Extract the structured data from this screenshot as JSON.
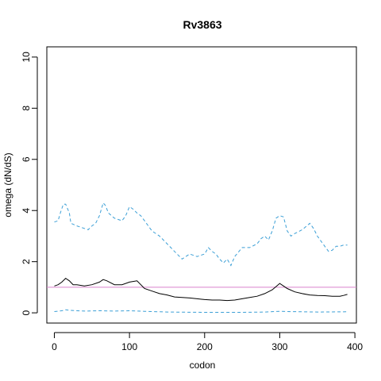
{
  "chart_data": {
    "type": "line",
    "title": "Rv3863",
    "xlabel": "codon",
    "ylabel": "omega (dN/dS)",
    "xlim": [
      -10,
      402
    ],
    "ylim": [
      -0.4,
      10.4
    ],
    "xticks": [
      0,
      100,
      200,
      300,
      400
    ],
    "yticks": [
      0,
      2,
      4,
      6,
      8,
      10
    ],
    "grid": false,
    "colors": {
      "mean": "#000000",
      "upper": "#3b9fd6",
      "lower": "#3b9fd6",
      "reference": "#d980cc"
    },
    "reference_line": {
      "y": 1.0
    },
    "series": [
      {
        "style": "solid",
        "x": [
          0,
          5,
          10,
          15,
          20,
          25,
          30,
          40,
          50,
          60,
          65,
          70,
          80,
          90,
          100,
          110,
          120,
          130,
          140,
          150,
          160,
          170,
          180,
          190,
          200,
          210,
          220,
          230,
          240,
          250,
          260,
          270,
          280,
          290,
          300,
          305,
          310,
          320,
          330,
          340,
          350,
          360,
          370,
          380,
          385,
          390
        ],
        "values": [
          1.05,
          1.1,
          1.2,
          1.35,
          1.25,
          1.1,
          1.1,
          1.05,
          1.1,
          1.2,
          1.3,
          1.25,
          1.1,
          1.1,
          1.2,
          1.25,
          0.95,
          0.85,
          0.75,
          0.7,
          0.62,
          0.6,
          0.58,
          0.55,
          0.52,
          0.5,
          0.5,
          0.48,
          0.5,
          0.55,
          0.6,
          0.65,
          0.75,
          0.9,
          1.15,
          1.05,
          0.95,
          0.82,
          0.75,
          0.7,
          0.68,
          0.67,
          0.65,
          0.65,
          0.68,
          0.72
        ]
      },
      {
        "style": "dashed",
        "x": [
          0,
          5,
          8,
          12,
          15,
          20,
          22,
          30,
          40,
          45,
          50,
          55,
          60,
          65,
          68,
          72,
          80,
          90,
          95,
          100,
          105,
          110,
          115,
          120,
          130,
          140,
          150,
          160,
          170,
          175,
          180,
          190,
          200,
          205,
          210,
          215,
          220,
          225,
          230,
          235,
          240,
          250,
          260,
          270,
          275,
          280,
          285,
          290,
          295,
          300,
          305,
          310,
          315,
          320,
          330,
          340,
          345,
          350,
          355,
          360,
          365,
          370,
          375,
          380,
          385,
          390
        ],
        "values": [
          3.55,
          3.6,
          3.9,
          4.25,
          4.25,
          3.9,
          3.5,
          3.4,
          3.3,
          3.25,
          3.4,
          3.5,
          3.8,
          4.3,
          4.2,
          3.9,
          3.7,
          3.6,
          3.8,
          4.15,
          4.05,
          3.9,
          3.8,
          3.6,
          3.2,
          3.0,
          2.7,
          2.4,
          2.1,
          2.2,
          2.3,
          2.2,
          2.3,
          2.55,
          2.4,
          2.3,
          2.1,
          1.95,
          2.1,
          1.85,
          2.2,
          2.55,
          2.55,
          2.7,
          2.9,
          3.0,
          2.85,
          3.2,
          3.7,
          3.8,
          3.75,
          3.2,
          3.0,
          3.1,
          3.25,
          3.5,
          3.3,
          3.0,
          2.8,
          2.6,
          2.4,
          2.45,
          2.6,
          2.6,
          2.65,
          2.65
        ]
      },
      {
        "style": "dashed",
        "x": [
          0,
          10,
          15,
          20,
          30,
          40,
          60,
          80,
          100,
          120,
          150,
          200,
          250,
          280,
          300,
          310,
          350,
          390
        ],
        "values": [
          0.05,
          0.08,
          0.12,
          0.1,
          0.08,
          0.07,
          0.08,
          0.07,
          0.08,
          0.06,
          0.03,
          0.02,
          0.02,
          0.03,
          0.06,
          0.05,
          0.03,
          0.04
        ]
      }
    ]
  }
}
